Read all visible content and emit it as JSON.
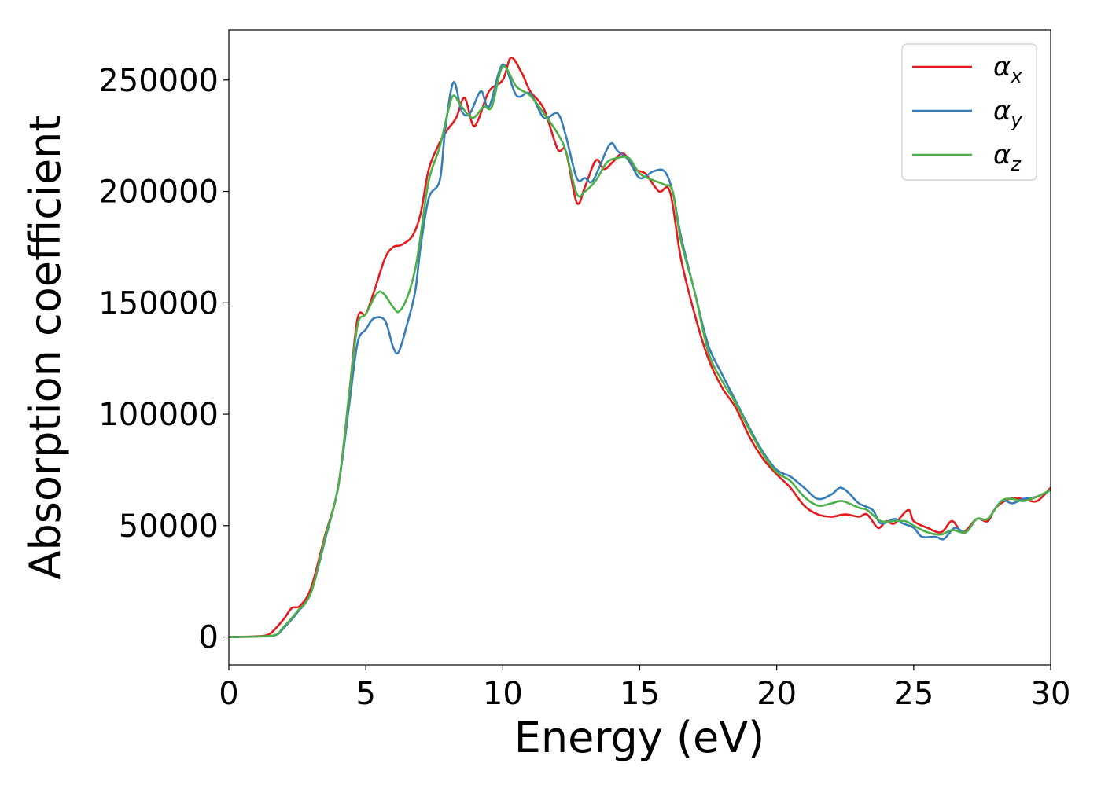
{
  "chart_data": {
    "type": "line",
    "title": "",
    "xlabel": "Energy (eV)",
    "ylabel": "Absorption coefficient",
    "xlim": [
      0,
      30
    ],
    "ylim": [
      -12500,
      272500
    ],
    "xticks": [
      0,
      5,
      10,
      15,
      20,
      25,
      30
    ],
    "yticks": [
      0,
      50000,
      100000,
      150000,
      200000,
      250000
    ],
    "grid": false,
    "legend_position": "top-right",
    "series": [
      {
        "name": "α_x",
        "color": "#e41a1c",
        "points": [
          [
            0,
            0
          ],
          [
            1,
            300
          ],
          [
            1.5,
            1500
          ],
          [
            2,
            8000
          ],
          [
            2.3,
            13000
          ],
          [
            2.6,
            14000
          ],
          [
            3,
            22000
          ],
          [
            3.5,
            45000
          ],
          [
            4,
            68000
          ],
          [
            4.4,
            110000
          ],
          [
            4.7,
            143000
          ],
          [
            5,
            145000
          ],
          [
            5.3,
            155000
          ],
          [
            5.7,
            170000
          ],
          [
            6,
            175000
          ],
          [
            6.3,
            176000
          ],
          [
            6.7,
            180000
          ],
          [
            7,
            190000
          ],
          [
            7.3,
            210000
          ],
          [
            7.7,
            222000
          ],
          [
            8,
            228000
          ],
          [
            8.3,
            233000
          ],
          [
            8.6,
            242000
          ],
          [
            8.9,
            230000
          ],
          [
            9.1,
            232000
          ],
          [
            9.5,
            245000
          ],
          [
            10,
            250000
          ],
          [
            10.3,
            260000
          ],
          [
            10.7,
            253000
          ],
          [
            11,
            245000
          ],
          [
            11.5,
            237000
          ],
          [
            12,
            219000
          ],
          [
            12.3,
            218000
          ],
          [
            12.7,
            195000
          ],
          [
            13,
            202000
          ],
          [
            13.4,
            214000
          ],
          [
            13.7,
            210000
          ],
          [
            14,
            213000
          ],
          [
            14.4,
            217000
          ],
          [
            14.8,
            210000
          ],
          [
            15.2,
            208000
          ],
          [
            15.7,
            200000
          ],
          [
            16.1,
            200000
          ],
          [
            16.5,
            170000
          ],
          [
            17,
            145000
          ],
          [
            17.5,
            125000
          ],
          [
            18,
            112000
          ],
          [
            18.5,
            103000
          ],
          [
            19,
            90000
          ],
          [
            19.5,
            80000
          ],
          [
            20,
            73000
          ],
          [
            20.5,
            67000
          ],
          [
            21,
            59000
          ],
          [
            21.5,
            55000
          ],
          [
            22,
            54000
          ],
          [
            22.5,
            55000
          ],
          [
            23,
            54000
          ],
          [
            23.3,
            55000
          ],
          [
            23.7,
            49000
          ],
          [
            24,
            52000
          ],
          [
            24.3,
            51000
          ],
          [
            24.8,
            57000
          ],
          [
            25,
            52000
          ],
          [
            25.5,
            49000
          ],
          [
            26,
            47000
          ],
          [
            26.4,
            52000
          ],
          [
            26.8,
            47000
          ],
          [
            27.3,
            53000
          ],
          [
            27.7,
            52000
          ],
          [
            28,
            58000
          ],
          [
            28.5,
            62000
          ],
          [
            29,
            62000
          ],
          [
            29.5,
            61000
          ],
          [
            30,
            67000
          ]
        ]
      },
      {
        "name": "α_y",
        "color": "#377eb8",
        "points": [
          [
            0,
            0
          ],
          [
            1,
            200
          ],
          [
            1.7,
            800
          ],
          [
            2,
            4000
          ],
          [
            2.5,
            11000
          ],
          [
            3,
            20000
          ],
          [
            3.5,
            43000
          ],
          [
            4,
            68000
          ],
          [
            4.4,
            105000
          ],
          [
            4.7,
            132000
          ],
          [
            5,
            138000
          ],
          [
            5.3,
            143000
          ],
          [
            5.7,
            142000
          ],
          [
            6,
            130000
          ],
          [
            6.2,
            128000
          ],
          [
            6.5,
            140000
          ],
          [
            6.8,
            155000
          ],
          [
            7,
            175000
          ],
          [
            7.3,
            197000
          ],
          [
            7.7,
            205000
          ],
          [
            7.9,
            228000
          ],
          [
            8.2,
            249000
          ],
          [
            8.5,
            236000
          ],
          [
            8.8,
            235000
          ],
          [
            9.2,
            245000
          ],
          [
            9.5,
            238000
          ],
          [
            10,
            257000
          ],
          [
            10.5,
            243000
          ],
          [
            11,
            244000
          ],
          [
            11.5,
            233000
          ],
          [
            12,
            235000
          ],
          [
            12.3,
            225000
          ],
          [
            12.7,
            206000
          ],
          [
            13,
            206000
          ],
          [
            13.3,
            205000
          ],
          [
            13.9,
            221000
          ],
          [
            14.2,
            218000
          ],
          [
            14.6,
            214000
          ],
          [
            15,
            206000
          ],
          [
            15.5,
            209000
          ],
          [
            15.9,
            209000
          ],
          [
            16.2,
            200000
          ],
          [
            16.5,
            180000
          ],
          [
            17,
            155000
          ],
          [
            17.5,
            131000
          ],
          [
            18,
            118000
          ],
          [
            18.5,
            106000
          ],
          [
            19,
            94000
          ],
          [
            19.5,
            83000
          ],
          [
            20,
            75000
          ],
          [
            20.5,
            72000
          ],
          [
            21,
            67000
          ],
          [
            21.5,
            62000
          ],
          [
            22,
            64000
          ],
          [
            22.3,
            67000
          ],
          [
            22.6,
            65000
          ],
          [
            23,
            60000
          ],
          [
            23.5,
            57000
          ],
          [
            23.8,
            51000
          ],
          [
            24.3,
            53000
          ],
          [
            24.6,
            51000
          ],
          [
            25,
            49000
          ],
          [
            25.3,
            45000
          ],
          [
            25.8,
            45000
          ],
          [
            26.1,
            44000
          ],
          [
            26.5,
            49000
          ],
          [
            26.9,
            47000
          ],
          [
            27.3,
            53000
          ],
          [
            27.7,
            53000
          ],
          [
            28.2,
            61000
          ],
          [
            28.6,
            60000
          ],
          [
            29,
            62000
          ],
          [
            29.5,
            63000
          ],
          [
            30,
            66000
          ]
        ]
      },
      {
        "name": "α_z",
        "color": "#4daf4a",
        "points": [
          [
            0,
            0
          ],
          [
            1,
            200
          ],
          [
            1.7,
            900
          ],
          [
            2,
            4500
          ],
          [
            2.5,
            11500
          ],
          [
            3,
            20000
          ],
          [
            3.5,
            44000
          ],
          [
            4,
            68000
          ],
          [
            4.4,
            110000
          ],
          [
            4.7,
            140000
          ],
          [
            5,
            145000
          ],
          [
            5.5,
            155000
          ],
          [
            6,
            148000
          ],
          [
            6.2,
            146000
          ],
          [
            6.5,
            152000
          ],
          [
            6.8,
            165000
          ],
          [
            7,
            180000
          ],
          [
            7.3,
            205000
          ],
          [
            7.7,
            220000
          ],
          [
            8,
            236000
          ],
          [
            8.2,
            243000
          ],
          [
            8.5,
            238000
          ],
          [
            8.9,
            233000
          ],
          [
            9.3,
            238000
          ],
          [
            9.6,
            238000
          ],
          [
            10,
            256000
          ],
          [
            10.5,
            247000
          ],
          [
            11,
            243000
          ],
          [
            11.5,
            235000
          ],
          [
            12,
            226000
          ],
          [
            12.3,
            218000
          ],
          [
            12.7,
            199000
          ],
          [
            13,
            200000
          ],
          [
            13.4,
            205000
          ],
          [
            13.8,
            213000
          ],
          [
            14.2,
            215000
          ],
          [
            14.6,
            215000
          ],
          [
            15,
            208000
          ],
          [
            15.5,
            205000
          ],
          [
            15.9,
            203000
          ],
          [
            16.2,
            200000
          ],
          [
            16.5,
            178000
          ],
          [
            17,
            155000
          ],
          [
            17.5,
            128000
          ],
          [
            18,
            115000
          ],
          [
            18.5,
            105000
          ],
          [
            19,
            93000
          ],
          [
            19.5,
            82000
          ],
          [
            20,
            74000
          ],
          [
            20.5,
            70000
          ],
          [
            21,
            63000
          ],
          [
            21.5,
            59000
          ],
          [
            22,
            60000
          ],
          [
            22.4,
            61000
          ],
          [
            23,
            58000
          ],
          [
            23.3,
            57000
          ],
          [
            23.8,
            52000
          ],
          [
            24.3,
            52000
          ],
          [
            24.7,
            52000
          ],
          [
            25,
            50000
          ],
          [
            25.5,
            47000
          ],
          [
            26,
            46000
          ],
          [
            26.4,
            48000
          ],
          [
            26.9,
            47000
          ],
          [
            27.3,
            53000
          ],
          [
            27.7,
            53000
          ],
          [
            28.2,
            61000
          ],
          [
            28.6,
            62000
          ],
          [
            29,
            61000
          ],
          [
            29.5,
            63000
          ],
          [
            30,
            66000
          ]
        ]
      }
    ]
  },
  "legend": {
    "items": [
      {
        "symbol": "α",
        "sub": "x",
        "color": "#e41a1c"
      },
      {
        "symbol": "α",
        "sub": "y",
        "color": "#377eb8"
      },
      {
        "symbol": "α",
        "sub": "z",
        "color": "#4daf4a"
      }
    ]
  }
}
